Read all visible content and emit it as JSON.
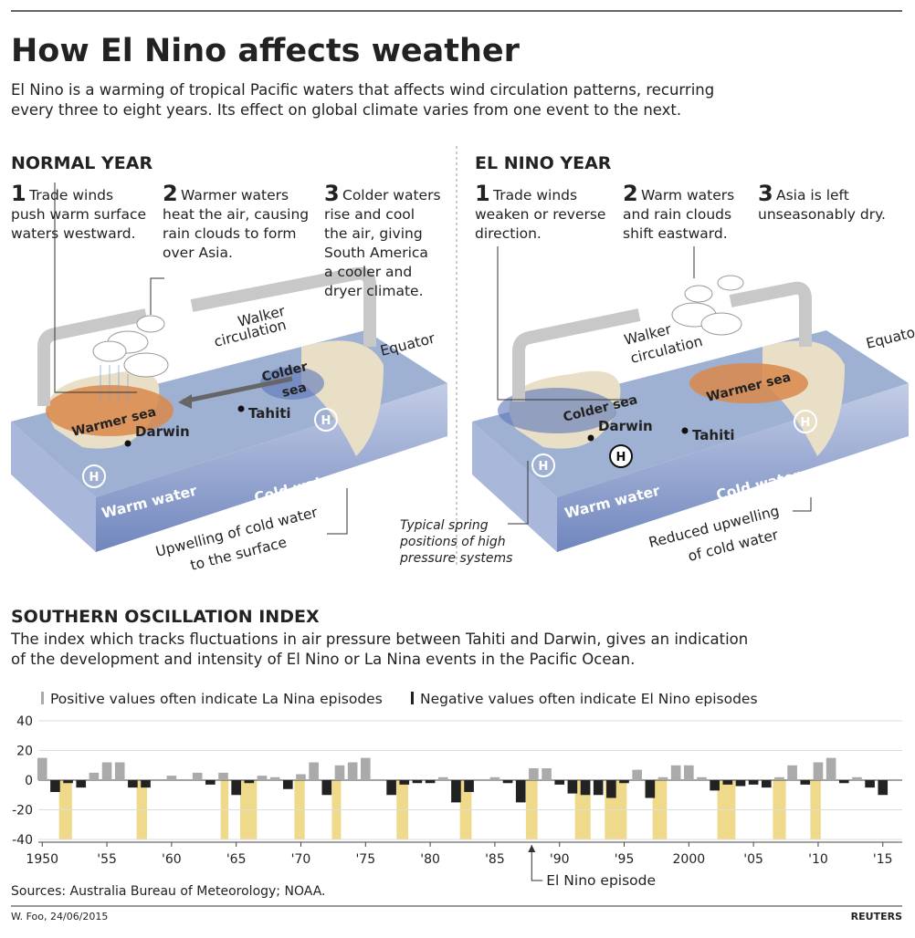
{
  "header": {
    "title": "How El Nino affects weather",
    "subtitle": [
      "El Nino is a warming of tropical Pacific waters that affects wind circulation patterns, recurring",
      "every three to eight years. Its effect on global climate varies from one event to the next."
    ]
  },
  "panels": [
    {
      "heading": "NORMAL YEAR",
      "steps": [
        {
          "number": 1,
          "text": [
            "Trade winds",
            "push warm surface",
            "waters westward."
          ]
        },
        {
          "number": 2,
          "text": [
            "Warmer waters",
            "heat the air, causing",
            "rain clouds to form",
            "over Asia."
          ]
        },
        {
          "number": 3,
          "text": [
            "Colder waters",
            "rise and cool",
            "the air, giving",
            "South America",
            "a cooler and",
            "dryer climate."
          ]
        }
      ],
      "labels": {
        "walker": [
          "Walker",
          "circulation"
        ],
        "equator": "Equator",
        "colder_sea": [
          "Colder",
          "sea"
        ],
        "warmer_sea": [
          "Warmer sea"
        ],
        "darwin": "Darwin",
        "tahiti": "Tahiti",
        "warm_water": "Warm water",
        "cold_water": "Cold water",
        "callout": [
          "Upwelling of cold water",
          "to the surface"
        ]
      }
    },
    {
      "heading": "EL NINO YEAR",
      "steps": [
        {
          "number": 1,
          "text": [
            "Trade winds",
            "weaken or reverse",
            "direction."
          ]
        },
        {
          "number": 2,
          "text": [
            "Warm waters",
            "and rain clouds",
            "shift eastward."
          ]
        },
        {
          "number": 3,
          "text": [
            "Asia is left",
            "unseasonably dry."
          ]
        }
      ],
      "labels": {
        "walker": [
          "Walker",
          "circulation"
        ],
        "equator": "Equator",
        "colder_sea": [
          "Colder sea"
        ],
        "warmer_sea": [
          "Warmer sea"
        ],
        "darwin": "Darwin",
        "tahiti": "Tahiti",
        "warm_water": "Warm water",
        "cold_water": "Cold water",
        "callout": [
          "Reduced upwelling",
          "of cold water"
        ]
      }
    }
  ],
  "high_symbol": "H",
  "pressure_note": [
    "Typical spring",
    "positions of high",
    "pressure systems"
  ],
  "soi": {
    "heading": "SOUTHERN OSCILLATION INDEX",
    "description": [
      "The index which tracks fluctuations in air pressure between Tahiti and Darwin, gives an indication",
      "of the development and intensity of El Nino or La Nina events in the Pacific Ocean."
    ]
  },
  "chart_data": {
    "type": "bar",
    "legend": [
      {
        "name": "Positive values often indicate La Nina episodes",
        "color": "#aaaaaa"
      },
      {
        "name": "Negative values often indicate El Nino episodes",
        "color": "#222222"
      }
    ],
    "x": [
      1950,
      1951,
      1952,
      1953,
      1954,
      1955,
      1956,
      1957,
      1958,
      1959,
      1960,
      1961,
      1962,
      1963,
      1964,
      1965,
      1966,
      1967,
      1968,
      1969,
      1970,
      1971,
      1972,
      1973,
      1974,
      1975,
      1976,
      1977,
      1978,
      1979,
      1980,
      1981,
      1982,
      1983,
      1984,
      1985,
      1986,
      1987,
      1988,
      1989,
      1990,
      1991,
      1992,
      1993,
      1994,
      1995,
      1996,
      1997,
      1998,
      1999,
      2000,
      2001,
      2002,
      2003,
      2004,
      2005,
      2006,
      2007,
      2008,
      2009,
      2010,
      2011,
      2012,
      2013,
      2014,
      2015
    ],
    "values": [
      15,
      -8,
      -2,
      -5,
      5,
      12,
      12,
      -5,
      -5,
      0,
      3,
      0,
      5,
      -3,
      5,
      -10,
      -2,
      3,
      2,
      -6,
      4,
      12,
      -10,
      10,
      12,
      15,
      0,
      -10,
      -3,
      -2,
      -2,
      2,
      -15,
      -8,
      0,
      2,
      -2,
      -15,
      8,
      8,
      -3,
      -9,
      -10,
      -10,
      -12,
      -2,
      7,
      -12,
      2,
      10,
      10,
      2,
      -7,
      -3,
      -4,
      -3,
      -5,
      2,
      10,
      -3,
      12,
      15,
      -2,
      2,
      -5,
      -10
    ],
    "episodes": [
      [
        1951.3,
        1952.3
      ],
      [
        1957.3,
        1958.1
      ],
      [
        1963.8,
        1964.4
      ],
      [
        1965.3,
        1966.6
      ],
      [
        1969.5,
        1970.3
      ],
      [
        1972.4,
        1973.1
      ],
      [
        1977.4,
        1978.3
      ],
      [
        1982.3,
        1983.2
      ],
      [
        1987.4,
        1988.3
      ],
      [
        1991.2,
        1992.4
      ],
      [
        1993.5,
        1995.2
      ],
      [
        1997.2,
        1998.3
      ],
      [
        2002.2,
        2003.6
      ],
      [
        2006.5,
        2007.5
      ],
      [
        2009.4,
        2010.2
      ]
    ],
    "episode_color": "#efd98a",
    "annotation": "El Nino episode",
    "xlim": [
      1949.7,
      2016.5
    ],
    "xticks": [
      {
        "value": 1950,
        "label": "1950"
      },
      {
        "value": 1955,
        "label": "'55"
      },
      {
        "value": 1960,
        "label": "'60"
      },
      {
        "value": 1965,
        "label": "'65"
      },
      {
        "value": 1970,
        "label": "'70"
      },
      {
        "value": 1975,
        "label": "'75"
      },
      {
        "value": 1980,
        "label": "'80"
      },
      {
        "value": 1985,
        "label": "'85"
      },
      {
        "value": 1990,
        "label": "'90"
      },
      {
        "value": 1995,
        "label": "'95"
      },
      {
        "value": 2000,
        "label": "2000"
      },
      {
        "value": 2005,
        "label": "'05"
      },
      {
        "value": 2010,
        "label": "'10"
      },
      {
        "value": 2015,
        "label": "'15"
      }
    ],
    "ylim": [
      -40,
      40
    ],
    "yticks": [
      -40,
      -20,
      0,
      20,
      40
    ],
    "grid": true
  },
  "sources": "Sources: Australia Bureau of Meteorology; NOAA.",
  "footer": {
    "credit": "W. Foo, 24/06/2015",
    "brand": "REUTERS"
  }
}
